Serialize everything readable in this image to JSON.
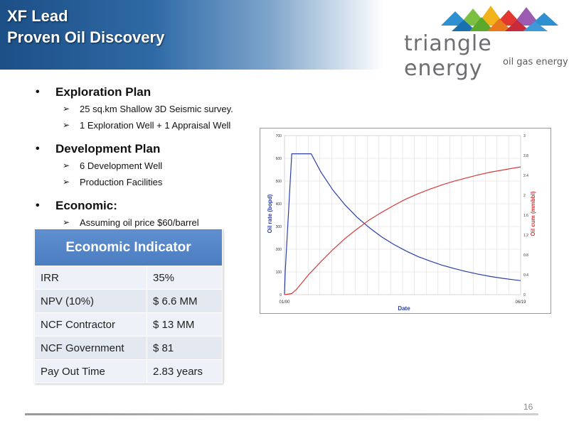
{
  "header": {
    "title_line1": "XF Lead",
    "title_line2": "Proven Oil Discovery"
  },
  "logo": {
    "name": "triangle energy",
    "tagline": "oil gas energy"
  },
  "plan": [
    {
      "heading": "Exploration Plan",
      "items": [
        "25  sq.km Shallow 3D Seismic survey.",
        "1 Exploration Well + 1 Appraisal Well"
      ]
    },
    {
      "heading": "Development Plan",
      "items": [
        "6 Development Well",
        "Production Facilities"
      ]
    },
    {
      "heading": "Economic:",
      "items": [
        "Assuming oil price $60/barrel"
      ]
    }
  ],
  "table": {
    "header": "Economic Indicator",
    "rows": [
      {
        "label": "IRR",
        "value": "35%"
      },
      {
        "label": "NPV (10%)",
        "value": "$ 6.6 MM"
      },
      {
        "label": "NCF  Contractor",
        "value": "$ 13 MM"
      },
      {
        "label": "NCF Government",
        "value": "$ 81"
      },
      {
        "label": "Pay Out Time",
        "value": "2.83 years"
      }
    ]
  },
  "chart_data": {
    "type": "line",
    "xlabel": "Date",
    "ylabel": "Oil rate (bopd)",
    "y2label": "Oil cum (mmbbl)",
    "x_start_label": "01/00",
    "x_end_label": "06/19",
    "ylim": [
      0,
      700
    ],
    "y2lim": [
      0,
      3
    ],
    "y_ticks": [
      "0",
      "100",
      "200",
      "300",
      "400",
      "500",
      "600",
      "700"
    ],
    "y2_ticks": [
      "0",
      "0.4",
      "0.8",
      "1.2",
      "1.6",
      "2",
      "2.4",
      "2.8",
      "3"
    ],
    "grid": true,
    "series": [
      {
        "name": "Oil rate (bopd)",
        "axis": "left",
        "color": "#2b3fa8",
        "points": [
          [
            0,
            0
          ],
          [
            0.06,
            100
          ],
          [
            0.6,
            620
          ],
          [
            2.2,
            620
          ],
          [
            3,
            540
          ],
          [
            4,
            460
          ],
          [
            5,
            395
          ],
          [
            6,
            340
          ],
          [
            7,
            295
          ],
          [
            8,
            255
          ],
          [
            9,
            222
          ],
          [
            10,
            193
          ],
          [
            11,
            168
          ],
          [
            12,
            148
          ],
          [
            13,
            130
          ],
          [
            14,
            115
          ],
          [
            15,
            102
          ],
          [
            16,
            90
          ],
          [
            17,
            80
          ],
          [
            18,
            72
          ],
          [
            19,
            65
          ],
          [
            19.5,
            62
          ]
        ]
      },
      {
        "name": "Oil cum (mmbbl)",
        "axis": "right",
        "color": "#d63a3a",
        "points": [
          [
            0,
            0
          ],
          [
            0.6,
            0.02
          ],
          [
            1,
            0.1
          ],
          [
            2,
            0.38
          ],
          [
            3,
            0.62
          ],
          [
            4,
            0.85
          ],
          [
            5,
            1.06
          ],
          [
            6,
            1.24
          ],
          [
            7,
            1.41
          ],
          [
            8,
            1.55
          ],
          [
            9,
            1.68
          ],
          [
            10,
            1.8
          ],
          [
            11,
            1.9
          ],
          [
            12,
            1.99
          ],
          [
            13,
            2.07
          ],
          [
            14,
            2.14
          ],
          [
            15,
            2.2
          ],
          [
            16,
            2.26
          ],
          [
            17,
            2.31
          ],
          [
            18,
            2.35
          ],
          [
            19,
            2.39
          ],
          [
            19.5,
            2.41
          ]
        ]
      }
    ],
    "x_range": [
      0,
      19.5
    ]
  },
  "footer": {
    "page_number": "16"
  }
}
